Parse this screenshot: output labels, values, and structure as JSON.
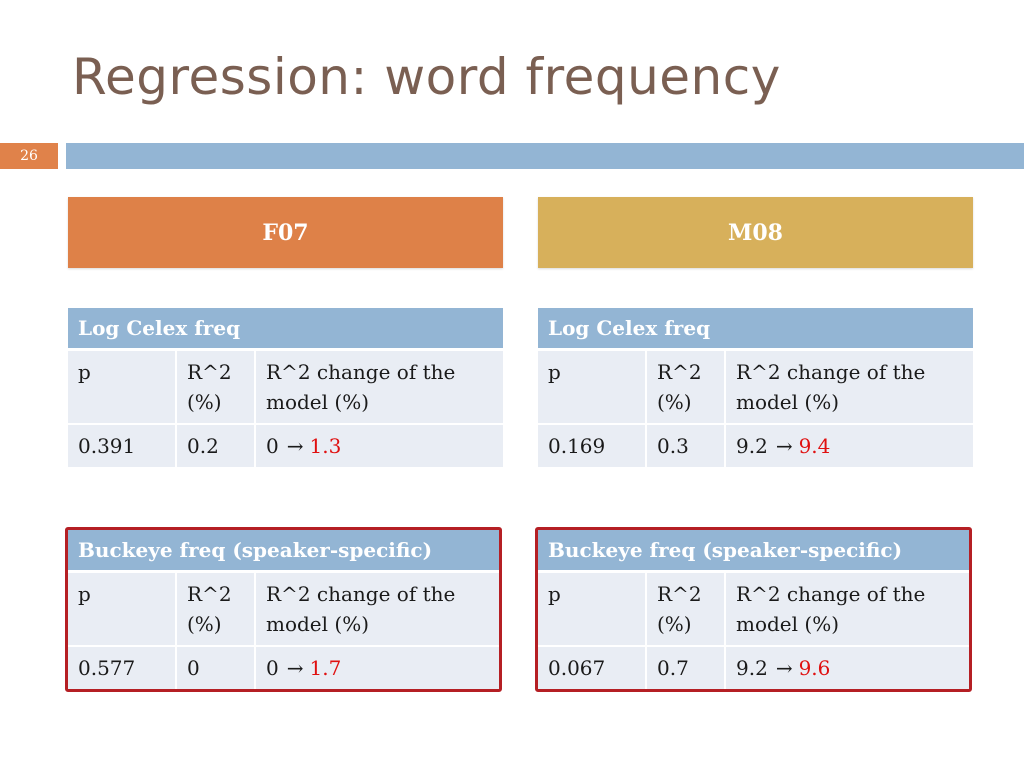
{
  "slide": {
    "title": "Regression: word frequency",
    "number": "26"
  },
  "speakers": {
    "left": "F07",
    "right": "M08"
  },
  "tables": {
    "f07_celex": {
      "heading": "Log Celex freq",
      "columns": [
        "p",
        "R^2 (%)",
        "R^2 change of the model (%)"
      ],
      "p": "0.391",
      "r2": "0.2",
      "change_from": "0",
      "change_to": "1.3"
    },
    "m08_celex": {
      "heading": "Log Celex freq",
      "columns": [
        "p",
        "R^2 (%)",
        "R^2 change of the model (%)"
      ],
      "p": "0.169",
      "r2": "0.3",
      "change_from": "9.2",
      "change_to": "9.4"
    },
    "f07_buckeye": {
      "heading": "Buckeye freq (speaker-specific)",
      "columns": [
        "p",
        "R^2 (%)",
        "R^2 change of the model (%)"
      ],
      "p": "0.577",
      "r2": "0",
      "change_from": "0",
      "change_to": "1.7"
    },
    "m08_buckeye": {
      "heading": "Buckeye freq (speaker-specific)",
      "columns": [
        "p",
        "R^2 (%)",
        "R^2 change of the model (%)"
      ],
      "p": "0.067",
      "r2": "0.7",
      "change_from": "9.2",
      "change_to": "9.6"
    }
  },
  "arrow_glyph": "→",
  "colors": {
    "title": "#7a5f52",
    "f07_header": "#de8148",
    "m08_header": "#d7b05b",
    "table_header": "#93b5d4",
    "highlight_border": "#b51f24",
    "new_value": "#e01010"
  }
}
